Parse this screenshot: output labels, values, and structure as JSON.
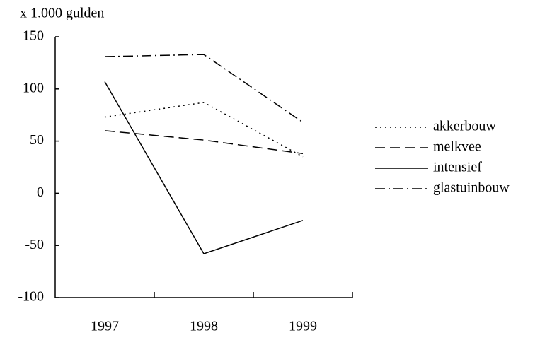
{
  "chart_data": {
    "type": "line",
    "y_label": "x 1.000 gulden",
    "categories": [
      "1997",
      "1998",
      "1999"
    ],
    "series": [
      {
        "name": "akkerbouw",
        "color": "#000000",
        "dash": "dotted",
        "values": [
          73,
          87,
          35
        ]
      },
      {
        "name": "melkvee",
        "color": "#000000",
        "dash": "dashed",
        "values": [
          60,
          51,
          38
        ]
      },
      {
        "name": "intensief",
        "color": "#000000",
        "dash": "solid",
        "values": [
          107,
          -58,
          -26
        ]
      },
      {
        "name": "glastuinbouw",
        "color": "#000000",
        "dash": "dashdot",
        "values": [
          131,
          133,
          68
        ]
      }
    ],
    "ylim": [
      -100,
      150
    ],
    "yticks": [
      -100,
      -50,
      0,
      50,
      100,
      150
    ],
    "grid": false,
    "legend": "right"
  }
}
